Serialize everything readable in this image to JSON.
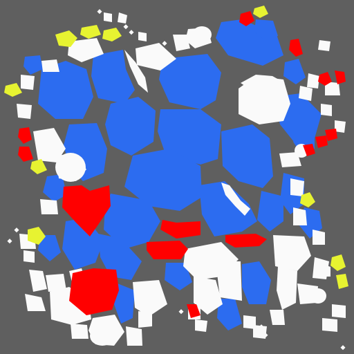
{
  "palette": {
    "background": "#5f5f5f",
    "blue": "#2c6cf0",
    "white": "#fafafa",
    "red": "#ff0000",
    "yellow": "#e7f331"
  },
  "legend_note": ""
}
